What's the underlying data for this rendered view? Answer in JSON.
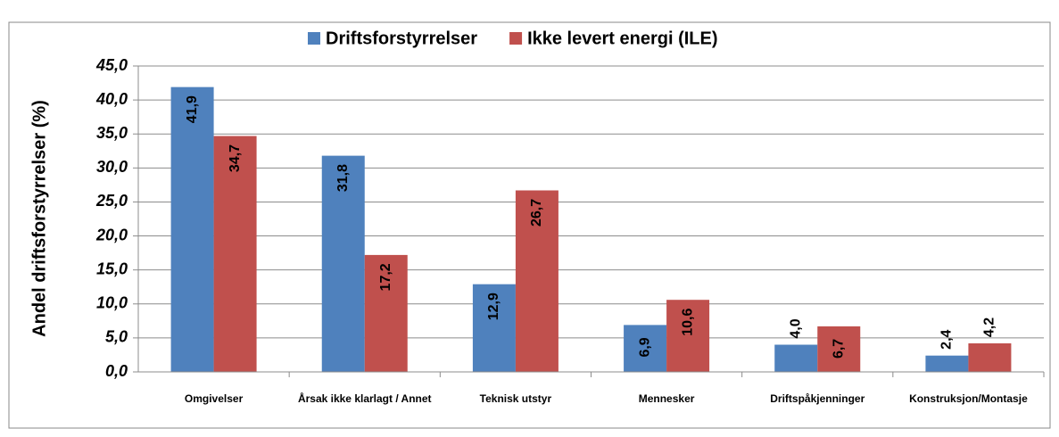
{
  "chart_data": {
    "type": "bar",
    "y_label": "Andel driftsforstyrrelser (%)",
    "categories": [
      "Omgivelser",
      "Årsak ikke klarlagt / Annet",
      "Teknisk utstyr",
      "Mennesker",
      "Driftspåkjenninger",
      "Konstruksjon/Montasje"
    ],
    "series": [
      {
        "name": "Driftsforstyrrelser",
        "color": "#4f81bd",
        "values": [
          41.9,
          31.8,
          12.9,
          6.9,
          4.0,
          2.4
        ],
        "value_labels": [
          "41,9",
          "31,8",
          "12,9",
          "6,9",
          "4,0",
          "2,4"
        ]
      },
      {
        "name": "Ikke levert energi (ILE)",
        "color": "#c0504d",
        "values": [
          34.7,
          17.2,
          26.7,
          10.6,
          6.7,
          4.2
        ],
        "value_labels": [
          "34,7",
          "17,2",
          "26,7",
          "10,6",
          "6,7",
          "4,2"
        ]
      }
    ],
    "ylim": [
      0,
      45
    ],
    "yticks": [
      {
        "value": 0,
        "label": "0,0"
      },
      {
        "value": 5,
        "label": "5,0"
      },
      {
        "value": 10,
        "label": "10,0"
      },
      {
        "value": 15,
        "label": "15,0"
      },
      {
        "value": 20,
        "label": "20,0"
      },
      {
        "value": 25,
        "label": "25,0"
      },
      {
        "value": 30,
        "label": "30,0"
      },
      {
        "value": 35,
        "label": "35,0"
      },
      {
        "value": 40,
        "label": "40,0"
      },
      {
        "value": 45,
        "label": "45,0"
      }
    ],
    "grid": true,
    "legend": "top"
  }
}
